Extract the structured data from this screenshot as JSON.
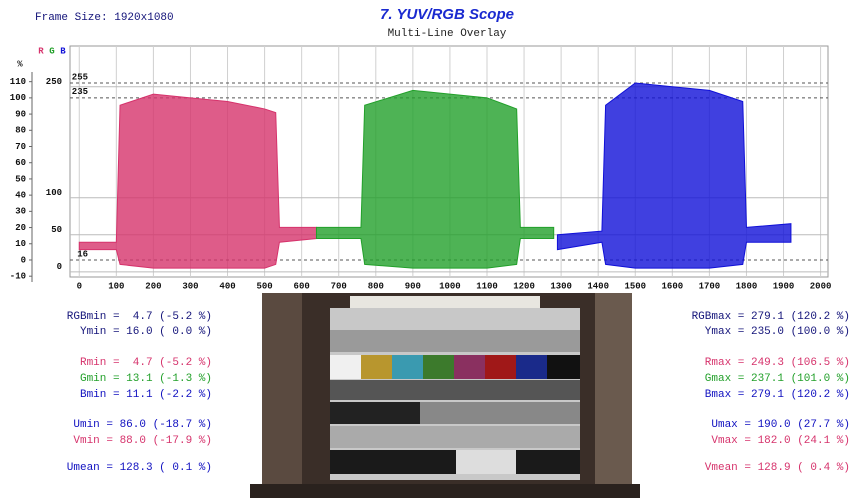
{
  "frame_size": "Frame Size: 1920x1080",
  "chart_data": {
    "type": "band",
    "title": "7. YUV/RGB Scope",
    "subtitle": "Multi-Line Overlay",
    "y_axis_label": "%",
    "legend": [
      {
        "name": "R",
        "color": "#d6336c"
      },
      {
        "name": "G",
        "color": "#22a02a"
      },
      {
        "name": "B",
        "color": "#1010d8"
      }
    ],
    "xlim": [
      -25,
      2020
    ],
    "xticks": [
      0,
      100,
      200,
      300,
      400,
      500,
      600,
      700,
      800,
      900,
      1000,
      1100,
      1200,
      1300,
      1400,
      1500,
      1600,
      1700,
      1800,
      1900,
      2000
    ],
    "ylim": [
      -7,
      305
    ],
    "yticks": [
      0,
      50,
      100,
      250
    ],
    "reference_lines": [
      16,
      235,
      255
    ],
    "y2lim": [
      -10.5,
      132
    ],
    "y2ticks": [
      -10,
      0,
      10,
      20,
      30,
      40,
      50,
      60,
      70,
      80,
      90,
      100,
      110
    ],
    "grid": true,
    "series": [
      {
        "name": "R",
        "color": "#d6336c",
        "x": [
          0,
          100,
          110,
          200,
          300,
          400,
          500,
          530,
          540,
          640
        ],
        "max": [
          40,
          40,
          225,
          240,
          235,
          230,
          220,
          215,
          60,
          60
        ],
        "min": [
          30,
          30,
          10,
          5,
          5,
          5,
          5,
          10,
          40,
          45
        ]
      },
      {
        "name": "G",
        "color": "#22a02a",
        "x": [
          640,
          760,
          770,
          900,
          1000,
          1100,
          1180,
          1190,
          1280
        ],
        "max": [
          60,
          60,
          225,
          245,
          240,
          235,
          220,
          60,
          60
        ],
        "min": [
          45,
          45,
          10,
          5,
          5,
          5,
          10,
          45,
          45
        ]
      },
      {
        "name": "B",
        "color": "#1010d8",
        "x": [
          1290,
          1410,
          1420,
          1500,
          1600,
          1700,
          1790,
          1800,
          1920
        ],
        "max": [
          50,
          55,
          225,
          255,
          250,
          245,
          230,
          60,
          65
        ],
        "min": [
          30,
          40,
          10,
          5,
          5,
          5,
          10,
          40,
          40
        ]
      }
    ]
  },
  "stats_left": [
    {
      "text": "RGBmin =  4.7 (-5.2 %)",
      "color": "#14147a"
    },
    {
      "text": "Ymin = 16.0 ( 0.0 %)",
      "color": "#14147a"
    },
    {
      "text": "Rmin =  4.7 (-5.2 %)",
      "color": "#d6336c"
    },
    {
      "text": "Gmin = 13.1 (-1.3 %)",
      "color": "#22a02a"
    },
    {
      "text": "Bmin = 11.1 (-2.2 %)",
      "color": "#1010c0"
    },
    {
      "text": "Umin = 86.0 (-18.7 %)",
      "color": "#1010c0"
    },
    {
      "text": "Vmin = 88.0 (-17.9 %)",
      "color": "#d6336c"
    },
    {
      "text": "Umean = 128.3 ( 0.1 %)",
      "color": "#1010c0"
    }
  ],
  "stats_right": [
    {
      "text": "RGBmax = 279.1 (120.2 %)",
      "color": "#14147a"
    },
    {
      "text": "Ymax = 235.0 (100.0 %)",
      "color": "#14147a"
    },
    {
      "text": "Rmax = 249.3 (106.5 %)",
      "color": "#d6336c"
    },
    {
      "text": "Gmax = 237.1 (101.0 %)",
      "color": "#22a02a"
    },
    {
      "text": "Bmax = 279.1 (120.2 %)",
      "color": "#1010c0"
    },
    {
      "text": "Umax = 190.0 (27.7 %)",
      "color": "#1010c0"
    },
    {
      "text": "Vmax = 182.0 (24.1 %)",
      "color": "#d6336c"
    },
    {
      "text": "Vmean = 128.9 ( 0.4 %)",
      "color": "#d6336c"
    }
  ]
}
